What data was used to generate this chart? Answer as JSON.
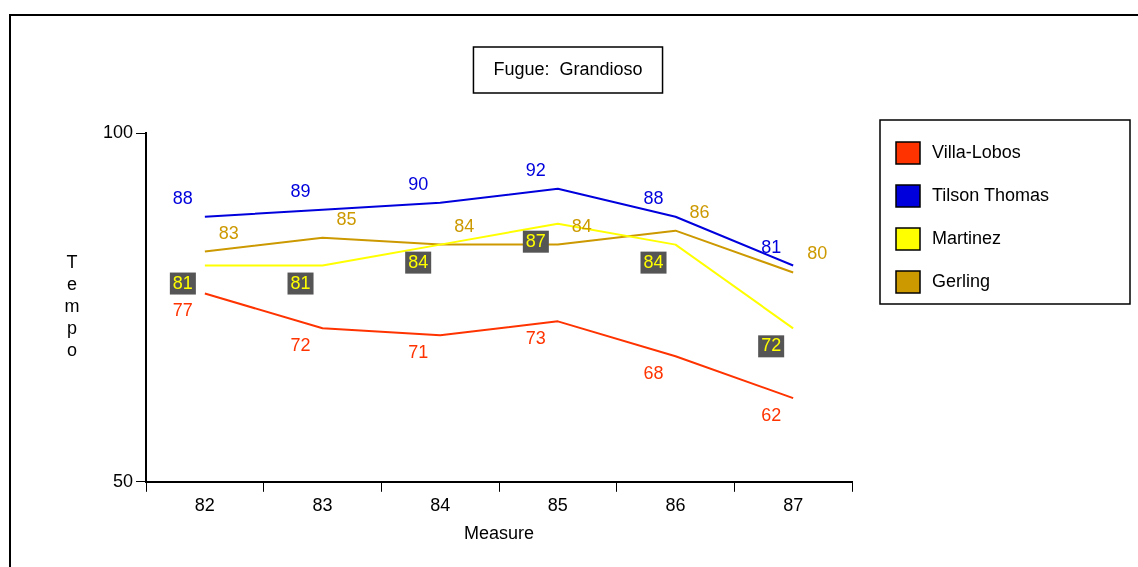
{
  "chart_data": {
    "type": "line",
    "title": "Fugue:  Grandioso",
    "xlabel": "Measure",
    "ylabel": "Tempo",
    "categories": [
      "82",
      "83",
      "84",
      "85",
      "86",
      "87"
    ],
    "series": [
      {
        "name": "Villa-Lobos",
        "color": "#ff3300",
        "values": [
          77,
          72,
          71,
          73,
          68,
          62
        ]
      },
      {
        "name": "Tilson Thomas",
        "color": "#0000dd",
        "values": [
          88,
          89,
          90,
          92,
          88,
          81
        ]
      },
      {
        "name": "Martinez",
        "color": "#ffff00",
        "values": [
          81,
          81,
          84,
          87,
          84,
          72
        ]
      },
      {
        "name": "Gerling",
        "color": "#cc9900",
        "values": [
          83,
          85,
          84,
          84,
          86,
          80
        ]
      }
    ],
    "ylim": [
      50,
      100
    ],
    "yticks": [
      50,
      100
    ],
    "grid": false,
    "legend": "right",
    "data_labels": true,
    "marker": "none",
    "line_style": "solid"
  }
}
